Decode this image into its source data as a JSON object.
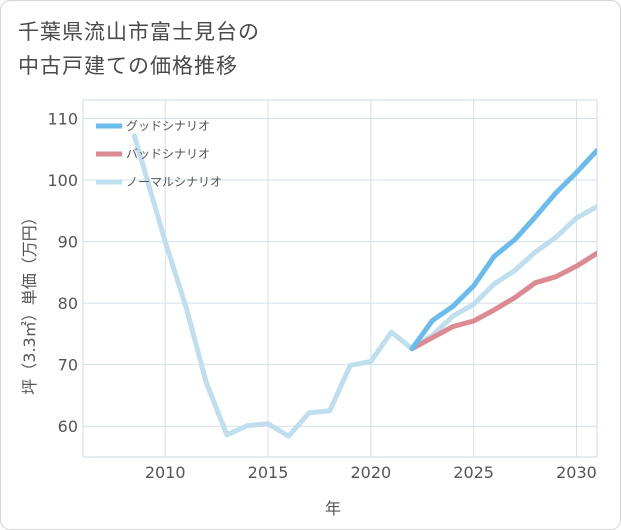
{
  "title_lines": [
    "千葉県流山市富士見台の",
    "中古戸建ての価格推移"
  ],
  "chart_data": {
    "type": "line",
    "title": "千葉県流山市富士見台の中古戸建ての価格推移",
    "xlabel": "年",
    "ylabel": "坪（3.3㎡）単価（万円）",
    "xlim": [
      2006,
      2031
    ],
    "ylim": [
      55,
      113
    ],
    "xticks": [
      2010,
      2015,
      2020,
      2025,
      2030
    ],
    "yticks": [
      60,
      70,
      80,
      90,
      100,
      110
    ],
    "grid": true,
    "legend_position": "top-left",
    "series": [
      {
        "name": "グッドシナリオ",
        "color": "#6bbcee",
        "x": [
          2022,
          2023,
          2024,
          2025,
          2026,
          2027,
          2028,
          2029,
          2030,
          2031
        ],
        "y": [
          72.6,
          77.2,
          79.5,
          82.8,
          87.6,
          90.3,
          94.0,
          97.9,
          101.2,
          104.8
        ]
      },
      {
        "name": "バッドシナリオ",
        "color": "#dc8a92",
        "x": [
          2022,
          2023,
          2024,
          2025,
          2026,
          2027,
          2028,
          2029,
          2030,
          2031
        ],
        "y": [
          72.6,
          74.4,
          76.2,
          77.1,
          78.9,
          80.9,
          83.3,
          84.3,
          86.0,
          88.1
        ]
      },
      {
        "name": "ノーマルシナリオ",
        "color": "#bfdfee",
        "x": [
          2008.5,
          2010,
          2011,
          2012,
          2013,
          2014,
          2015,
          2016,
          2017,
          2018,
          2019,
          2020,
          2021,
          2022,
          2023,
          2024,
          2025,
          2026,
          2027,
          2028,
          2029,
          2030,
          2031
        ],
        "y": [
          107.2,
          90.0,
          79.5,
          67.0,
          58.6,
          60.1,
          60.4,
          58.4,
          62.2,
          62.5,
          69.9,
          70.5,
          75.3,
          72.6,
          74.8,
          77.9,
          79.8,
          83.1,
          85.3,
          88.3,
          90.7,
          93.8,
          95.7
        ]
      }
    ]
  }
}
